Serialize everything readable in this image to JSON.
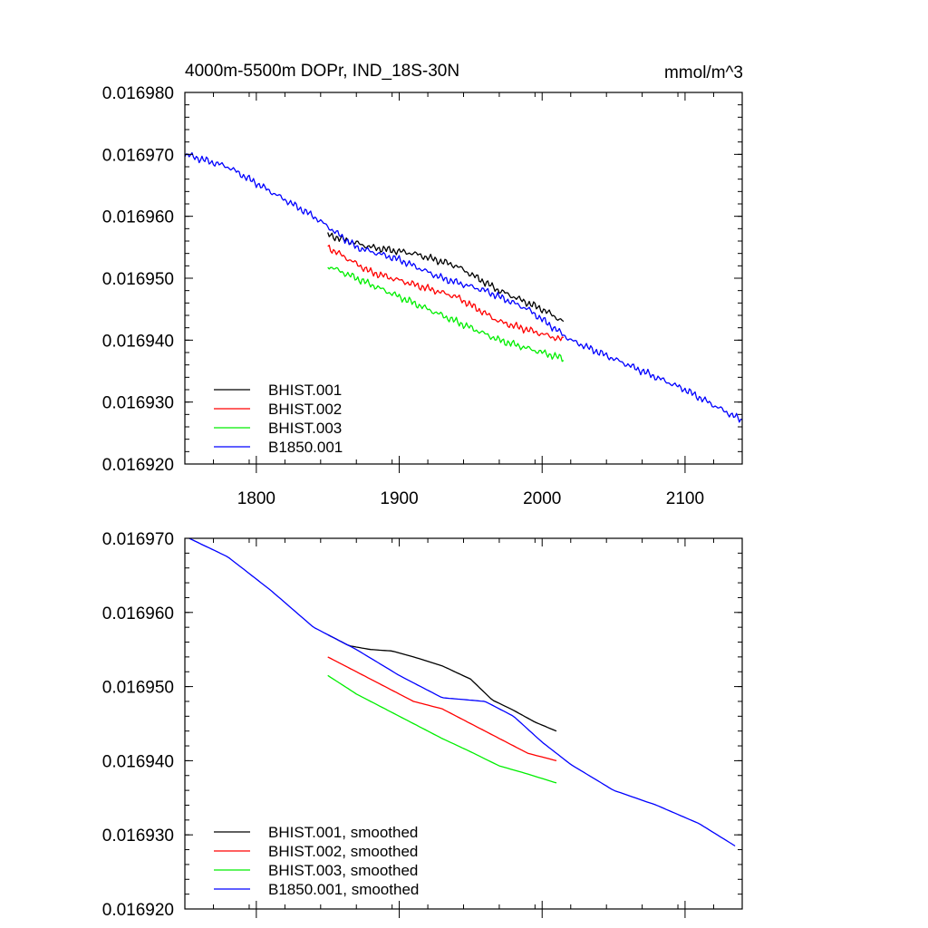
{
  "chart_data": [
    {
      "type": "line",
      "title": "4000m-5500m DOPr, IND_18S-30N",
      "units": "mmol/m^3",
      "xlim": [
        1750,
        2140
      ],
      "ylim": [
        0.01692,
        0.01698
      ],
      "x_ticks": [
        1800,
        1900,
        2000,
        2100
      ],
      "x_tick_labels": [
        "1800",
        "1900",
        "2000",
        "2100"
      ],
      "y_ticks": [
        0.01692,
        0.01693,
        0.01694,
        0.01695,
        0.01696,
        0.01697,
        0.01698
      ],
      "y_tick_labels": [
        "0.016920",
        "0.016930",
        "0.016940",
        "0.016950",
        "0.016960",
        "0.016970",
        "0.016980"
      ],
      "legend_position": "bottom-left",
      "series": [
        {
          "name": "BHIST.001",
          "color": "#000000",
          "noisy": true,
          "x": [
            1850,
            1880,
            1910,
            1940,
            1970,
            2000,
            2015
          ],
          "y": [
            0.016957,
            0.016955,
            0.016954,
            0.016952,
            0.016948,
            0.016945,
            0.016943
          ]
        },
        {
          "name": "BHIST.002",
          "color": "#ff0000",
          "noisy": true,
          "x": [
            1850,
            1880,
            1910,
            1940,
            1970,
            2000,
            2015
          ],
          "y": [
            0.016955,
            0.016951,
            0.016949,
            0.016947,
            0.016943,
            0.016941,
            0.01694
          ]
        },
        {
          "name": "BHIST.003",
          "color": "#00ee00",
          "noisy": true,
          "x": [
            1850,
            1880,
            1910,
            1940,
            1970,
            2000,
            2015
          ],
          "y": [
            0.016952,
            0.016949,
            0.016946,
            0.016943,
            0.01694,
            0.016938,
            0.016937
          ]
        },
        {
          "name": "B1850.001",
          "color": "#0000ff",
          "noisy": true,
          "x": [
            1750,
            1780,
            1810,
            1840,
            1870,
            1900,
            1930,
            1960,
            1990,
            2020,
            2060,
            2100,
            2140
          ],
          "y": [
            0.01697,
            0.016968,
            0.016964,
            0.01696,
            0.016955,
            0.016953,
            0.01695,
            0.016948,
            0.016945,
            0.01694,
            0.016936,
            0.016932,
            0.016927
          ]
        }
      ]
    },
    {
      "type": "line",
      "title": "",
      "units": "",
      "xlim": [
        1750,
        2140
      ],
      "ylim": [
        0.01692,
        0.01697
      ],
      "x_ticks": [
        1800,
        1900,
        2000,
        2100
      ],
      "x_tick_labels": [],
      "y_ticks": [
        0.01692,
        0.01693,
        0.01694,
        0.01695,
        0.01696,
        0.01697
      ],
      "y_tick_labels": [
        "0.016920",
        "0.016930",
        "0.016940",
        "0.016950",
        "0.016960",
        "0.016970"
      ],
      "legend_position": "bottom-left",
      "series": [
        {
          "name": "BHIST.001, smoothed",
          "color": "#000000",
          "noisy": false,
          "x": [
            1850,
            1865,
            1880,
            1895,
            1910,
            1930,
            1950,
            1965,
            1980,
            1995,
            2010
          ],
          "y": [
            0.016957,
            0.0169555,
            0.016955,
            0.0169548,
            0.016954,
            0.0169528,
            0.016951,
            0.0169482,
            0.0169468,
            0.0169452,
            0.016944
          ]
        },
        {
          "name": "BHIST.002, smoothed",
          "color": "#ff0000",
          "noisy": false,
          "x": [
            1850,
            1870,
            1890,
            1910,
            1930,
            1950,
            1970,
            1990,
            2010
          ],
          "y": [
            0.016954,
            0.016952,
            0.01695,
            0.016948,
            0.016947,
            0.016945,
            0.016943,
            0.016941,
            0.01694
          ]
        },
        {
          "name": "BHIST.003, smoothed",
          "color": "#00ee00",
          "noisy": false,
          "x": [
            1850,
            1870,
            1890,
            1910,
            1930,
            1950,
            1970,
            1990,
            2010
          ],
          "y": [
            0.0169515,
            0.016949,
            0.016947,
            0.016945,
            0.016943,
            0.0169412,
            0.0169393,
            0.0169382,
            0.016937
          ]
        },
        {
          "name": "B1850.001, smoothed",
          "color": "#0000ff",
          "noisy": false,
          "x": [
            1753,
            1780,
            1810,
            1840,
            1870,
            1900,
            1930,
            1960,
            1980,
            2000,
            2020,
            2050,
            2080,
            2110,
            2135
          ],
          "y": [
            0.01697,
            0.0169675,
            0.016963,
            0.016958,
            0.016955,
            0.0169515,
            0.0169485,
            0.016948,
            0.016946,
            0.0169425,
            0.0169395,
            0.016936,
            0.016934,
            0.0169315,
            0.0169285
          ]
        }
      ]
    }
  ]
}
